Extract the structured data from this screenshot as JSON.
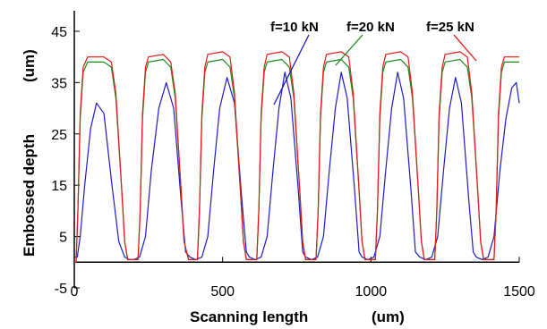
{
  "chart_data": {
    "type": "line",
    "xlabel": "Scanning length",
    "xlabel_unit": "(um)",
    "ylabel": "Embossed depth",
    "ylabel_unit": "(um)",
    "xlim": [
      0,
      1500
    ],
    "ylim": [
      -5,
      49
    ],
    "x_ticks": [
      0,
      500,
      1000,
      1500
    ],
    "y_ticks": [
      -5,
      5,
      15,
      25,
      35,
      45
    ],
    "grid": false,
    "legend": "annotations",
    "annotations": [
      {
        "text": "f=10 kN",
        "series": 0
      },
      {
        "text": "f=20 kN",
        "series": 1
      },
      {
        "text": "f=25 kN",
        "series": 2
      }
    ],
    "series": [
      {
        "name": "f=10 kN",
        "color": "#1c1cc4",
        "x": [
          0,
          10,
          20,
          35,
          55,
          75,
          100,
          125,
          150,
          170,
          185,
          200,
          220,
          240,
          260,
          285,
          310,
          335,
          360,
          375,
          390,
          410,
          430,
          450,
          470,
          490,
          515,
          540,
          565,
          580,
          590,
          610,
          630,
          650,
          670,
          690,
          710,
          730,
          755,
          770,
          780,
          800,
          820,
          840,
          860,
          880,
          900,
          920,
          945,
          960,
          970,
          990,
          1010,
          1030,
          1050,
          1070,
          1090,
          1110,
          1135,
          1150,
          1165,
          1185,
          1205,
          1225,
          1245,
          1265,
          1285,
          1305,
          1330,
          1345,
          1355,
          1375,
          1395,
          1415,
          1435,
          1455,
          1475,
          1490,
          1500
        ],
        "y": [
          1,
          1,
          5,
          15,
          26,
          31,
          29,
          16,
          4,
          1,
          0.5,
          0.5,
          1,
          5,
          18,
          30,
          35,
          30,
          12,
          2,
          1,
          0.5,
          1,
          5,
          18,
          30,
          36,
          31,
          12,
          2,
          1,
          0.5,
          1,
          5,
          18,
          30,
          37,
          32,
          14,
          2,
          1,
          0.5,
          1,
          5,
          18,
          30,
          37,
          32,
          14,
          2,
          1,
          0.5,
          1,
          5,
          18,
          30,
          37,
          32,
          14,
          2,
          1,
          0.5,
          1,
          5,
          18,
          30,
          36,
          31,
          12,
          2,
          1,
          0.5,
          1,
          5,
          18,
          28,
          34,
          35,
          31
        ]
      },
      {
        "name": "f=20 kN",
        "color": "#1e8a1e",
        "x": [
          0,
          6,
          12,
          20,
          30,
          45,
          100,
          125,
          140,
          160,
          170,
          180,
          200,
          215,
          222,
          230,
          240,
          250,
          300,
          325,
          340,
          360,
          370,
          385,
          400,
          415,
          422,
          430,
          440,
          450,
          500,
          525,
          540,
          560,
          570,
          580,
          600,
          615,
          622,
          630,
          640,
          650,
          700,
          725,
          740,
          760,
          770,
          780,
          800,
          815,
          822,
          830,
          840,
          850,
          900,
          925,
          940,
          960,
          970,
          980,
          1000,
          1015,
          1022,
          1030,
          1040,
          1050,
          1100,
          1125,
          1140,
          1160,
          1170,
          1180,
          1200,
          1215,
          1222,
          1230,
          1240,
          1250,
          1300,
          1325,
          1340,
          1360,
          1370,
          1380,
          1400,
          1415,
          1422,
          1430,
          1440,
          1450,
          1500
        ],
        "y": [
          0,
          0,
          10,
          28,
          37,
          39,
          39,
          38,
          32,
          14,
          4,
          0.5,
          0.5,
          0.5,
          10,
          28,
          37,
          39,
          39.5,
          38,
          32,
          14,
          4,
          0.5,
          0.5,
          0.5,
          10,
          28,
          37,
          39,
          39.5,
          38,
          32,
          14,
          4,
          0.5,
          0.5,
          0.5,
          10,
          28,
          37,
          39,
          39.5,
          38,
          32,
          14,
          4,
          0.5,
          0.5,
          0.5,
          10,
          28,
          37,
          39,
          39.5,
          38,
          32,
          14,
          4,
          0.5,
          0.5,
          0.5,
          10,
          28,
          37,
          39,
          39.5,
          38,
          32,
          14,
          4,
          0.5,
          0.5,
          0.5,
          10,
          28,
          37,
          39,
          39.5,
          38,
          32,
          14,
          4,
          0.5,
          0.5,
          0.5,
          10,
          28,
          37,
          39,
          39
        ]
      },
      {
        "name": "f=25 kN",
        "color": "#e81818",
        "x": [
          0,
          6,
          12,
          20,
          30,
          45,
          100,
          125,
          140,
          160,
          170,
          180,
          200,
          215,
          222,
          230,
          240,
          250,
          300,
          325,
          340,
          360,
          370,
          385,
          400,
          415,
          422,
          430,
          440,
          450,
          500,
          525,
          540,
          560,
          570,
          580,
          600,
          615,
          622,
          630,
          640,
          650,
          700,
          725,
          740,
          760,
          770,
          780,
          800,
          815,
          822,
          830,
          840,
          850,
          900,
          925,
          940,
          960,
          970,
          980,
          1000,
          1015,
          1022,
          1030,
          1040,
          1050,
          1100,
          1125,
          1140,
          1160,
          1170,
          1180,
          1200,
          1215,
          1222,
          1230,
          1240,
          1250,
          1300,
          1325,
          1340,
          1360,
          1370,
          1380,
          1400,
          1415,
          1422,
          1430,
          1440,
          1450,
          1500
        ],
        "y": [
          0,
          0,
          10,
          29,
          38,
          40,
          40,
          39,
          33,
          14,
          4,
          0.5,
          0.5,
          0.5,
          10,
          29,
          38,
          40,
          40.5,
          39,
          33,
          14,
          4,
          0.5,
          0.5,
          0.5,
          10,
          29,
          38,
          40.5,
          41,
          40,
          33,
          14,
          4,
          0.5,
          0.5,
          0.5,
          10,
          29,
          38,
          40.5,
          41,
          40,
          33,
          14,
          4,
          0.5,
          0.5,
          0.5,
          10,
          29,
          38,
          40.5,
          41,
          40,
          33,
          14,
          4,
          0.5,
          0.5,
          0.5,
          10,
          29,
          38,
          40.5,
          41,
          40,
          33,
          14,
          4,
          0.5,
          0.5,
          0.5,
          10,
          29,
          38,
          40.5,
          41,
          40,
          33,
          14,
          4,
          0.5,
          0.5,
          0.5,
          10,
          29,
          38,
          40,
          40
        ]
      }
    ]
  }
}
